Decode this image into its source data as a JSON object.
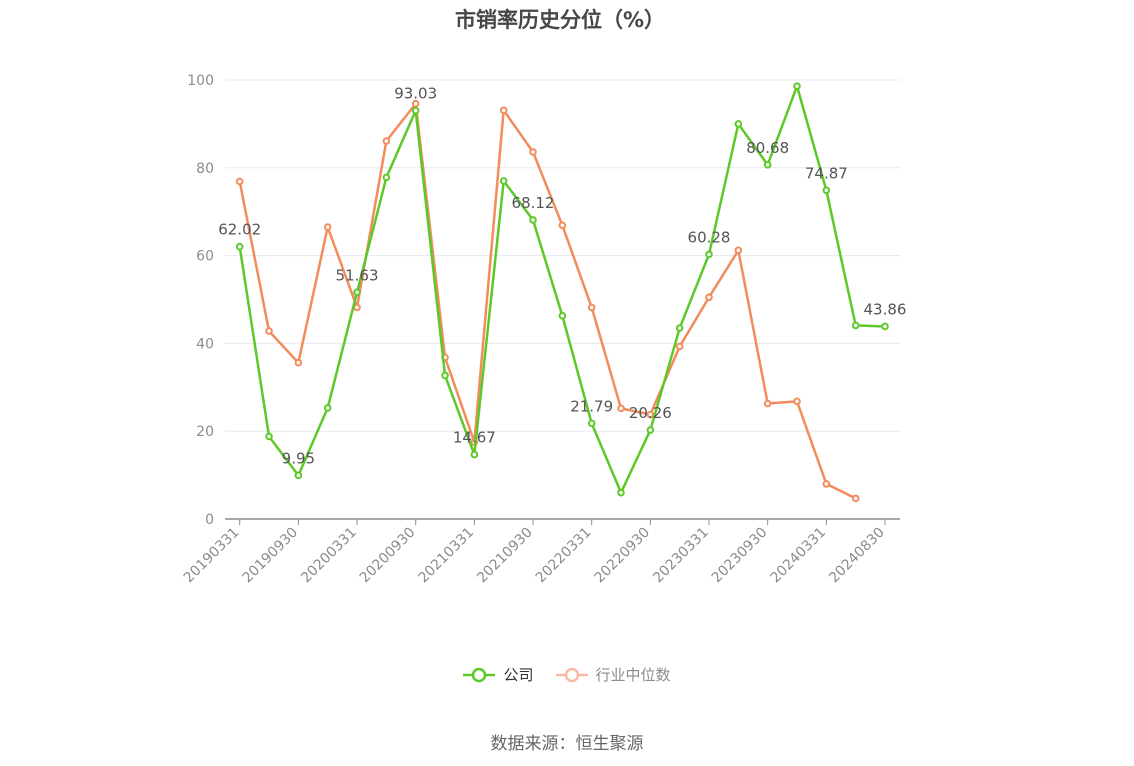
{
  "chart_data": {
    "type": "line",
    "title": "市销率历史分位（%）",
    "ylim": [
      0,
      100
    ],
    "yticks": [
      0,
      20,
      40,
      60,
      80,
      100
    ],
    "x": [
      "20190331",
      "20190630",
      "20190930",
      "20191231",
      "20200331",
      "20200630",
      "20200930",
      "20201231",
      "20210331",
      "20210630",
      "20210930",
      "20211231",
      "20220331",
      "20220630",
      "20220930",
      "20221231",
      "20230331",
      "20230630",
      "20230930",
      "20231231",
      "20240331",
      "20240630",
      "20240830"
    ],
    "xtick_labels": [
      "20190331",
      "20190930",
      "20200331",
      "20200930",
      "20210331",
      "20210930",
      "20220331",
      "20220930",
      "20230331",
      "20230930",
      "20240331",
      "20240830"
    ],
    "grid": true,
    "legend_position": "bottom",
    "series": [
      {
        "name": "公司",
        "color": "#5cc928",
        "values": [
          62.02,
          18.8,
          9.95,
          25.3,
          51.63,
          77.8,
          93.03,
          32.7,
          14.67,
          77.0,
          68.12,
          46.3,
          21.79,
          6.0,
          20.26,
          43.5,
          60.28,
          90.0,
          80.68,
          98.6,
          74.87,
          44.1,
          43.86
        ],
        "labels": {
          "0": "62.02",
          "2": "9.95",
          "4": "51.63",
          "6": "93.03",
          "8": "14.67",
          "10": "68.12",
          "12": "21.79",
          "14": "20.26",
          "16": "60.28",
          "18": "80.68",
          "20": "74.87",
          "22": "43.86"
        }
      },
      {
        "name": "行业中位数",
        "color": "#f28c5c",
        "values": [
          76.9,
          42.8,
          35.6,
          66.5,
          48.2,
          86.1,
          94.6,
          36.8,
          17.5,
          93.1,
          83.6,
          66.9,
          48.2,
          25.2,
          23.8,
          39.3,
          50.5,
          61.2,
          26.3,
          26.8,
          8.0,
          4.7,
          null
        ]
      }
    ]
  },
  "legend": {
    "items": [
      {
        "label": "公司",
        "color": "#5cc928",
        "state": "active"
      },
      {
        "label": "行业中位数",
        "color": "#f7b9a0",
        "state": "inactive"
      }
    ]
  },
  "footer": {
    "source": "数据来源：恒生聚源"
  }
}
